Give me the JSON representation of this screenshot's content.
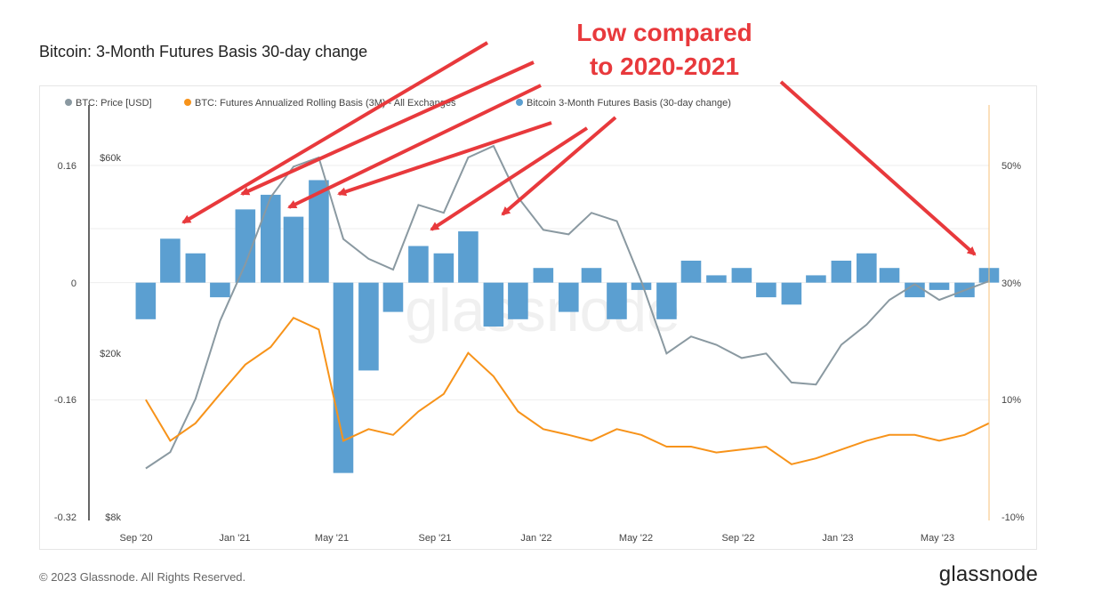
{
  "title": "Bitcoin: 3-Month Futures Basis 30-day change",
  "footer": "© 2023 Glassnode. All Rights Reserved.",
  "logo": "glassnode",
  "watermark": "glassnode",
  "annotation": [
    "Low compared",
    "to 2020-2021"
  ],
  "colors": {
    "price": "#8a99a1",
    "basis": "#f7931a",
    "change": "#5b9fd1",
    "annotation": "#e8393c"
  },
  "chart_data": {
    "type": "line",
    "title": "Bitcoin: 3-Month Futures Basis 30-day change",
    "legend_position": "top",
    "x_tick_labels": [
      "Sep '20",
      "Jan '21",
      "May '21",
      "Sep '21",
      "Jan '22",
      "May '22",
      "Sep '22",
      "Jan '23",
      "May '23"
    ],
    "left_axis": {
      "ticks": [
        "0.16",
        "0",
        "-0.16",
        "-0.32"
      ],
      "range": [
        -0.32,
        0.16
      ]
    },
    "price_axis": {
      "ticks": [
        "$60k",
        "$20k",
        "$8k"
      ],
      "scale": "log",
      "range": [
        8000,
        60000
      ]
    },
    "right_axis": {
      "ticks": [
        "50%",
        "30%",
        "10%",
        "-10%"
      ],
      "unit": "%",
      "range": [
        -10,
        50
      ]
    },
    "series": [
      {
        "name": "BTC: Price [USD]",
        "axis": "price",
        "color": "#8a99a1",
        "x": [
          "2020-09",
          "2020-10",
          "2020-11",
          "2020-12",
          "2021-01",
          "2021-02",
          "2021-03",
          "2021-04",
          "2021-05",
          "2021-06",
          "2021-07",
          "2021-08",
          "2021-09",
          "2021-10",
          "2021-11",
          "2021-12",
          "2022-01",
          "2022-02",
          "2022-03",
          "2022-04",
          "2022-05",
          "2022-06",
          "2022-07",
          "2022-08",
          "2022-09",
          "2022-10",
          "2022-11",
          "2022-12",
          "2023-01",
          "2023-02",
          "2023-03",
          "2023-04",
          "2023-05",
          "2023-06",
          "2023-07"
        ],
        "values": [
          10500,
          11500,
          15500,
          24000,
          33000,
          48000,
          57000,
          60000,
          38000,
          34000,
          32000,
          46000,
          44000,
          60000,
          64000,
          48000,
          40000,
          39000,
          44000,
          42000,
          30000,
          20000,
          22000,
          21000,
          19500,
          20000,
          17000,
          16800,
          21000,
          23500,
          27000,
          29500,
          27000,
          28500,
          30000
        ]
      },
      {
        "name": "BTC: Futures Annualized Rolling Basis (3M) - All Exchanges",
        "axis": "right",
        "color": "#f7931a",
        "x": [
          "2020-09",
          "2020-10",
          "2020-11",
          "2020-12",
          "2021-01",
          "2021-02",
          "2021-03",
          "2021-04",
          "2021-05",
          "2021-06",
          "2021-07",
          "2021-08",
          "2021-09",
          "2021-10",
          "2021-11",
          "2021-12",
          "2022-01",
          "2022-02",
          "2022-03",
          "2022-04",
          "2022-05",
          "2022-06",
          "2022-07",
          "2022-08",
          "2022-09",
          "2022-10",
          "2022-11",
          "2022-12",
          "2023-01",
          "2023-02",
          "2023-03",
          "2023-04",
          "2023-05",
          "2023-06",
          "2023-07"
        ],
        "values": [
          10,
          3,
          6,
          11,
          16,
          19,
          24,
          22,
          3,
          5,
          4,
          8,
          11,
          18,
          14,
          8,
          5,
          4,
          3,
          5,
          4,
          2,
          2,
          1,
          1.5,
          2,
          -1,
          0,
          1.5,
          3,
          4,
          4,
          3,
          4,
          6
        ]
      },
      {
        "name": "Bitcoin 3-Month Futures Basis (30-day change)",
        "axis": "left",
        "type": "bar",
        "color": "#5b9fd1",
        "x": [
          "2020-09",
          "2020-10",
          "2020-11",
          "2020-12",
          "2021-01",
          "2021-02",
          "2021-03",
          "2021-04",
          "2021-05",
          "2021-06",
          "2021-07",
          "2021-08",
          "2021-09",
          "2021-10",
          "2021-11",
          "2021-12",
          "2022-01",
          "2022-02",
          "2022-03",
          "2022-04",
          "2022-05",
          "2022-06",
          "2022-07",
          "2022-08",
          "2022-09",
          "2022-10",
          "2022-11",
          "2022-12",
          "2023-01",
          "2023-02",
          "2023-03",
          "2023-04",
          "2023-05",
          "2023-06",
          "2023-07"
        ],
        "values": [
          -0.05,
          0.06,
          0.04,
          -0.02,
          0.1,
          0.12,
          0.09,
          0.14,
          -0.26,
          -0.12,
          -0.04,
          0.05,
          0.04,
          0.07,
          -0.06,
          -0.05,
          0.02,
          -0.04,
          0.02,
          -0.05,
          -0.01,
          -0.05,
          0.03,
          0.01,
          0.02,
          -0.02,
          -0.03,
          0.01,
          0.03,
          0.04,
          0.02,
          -0.02,
          -0.01,
          -0.02,
          0.02
        ]
      }
    ]
  }
}
